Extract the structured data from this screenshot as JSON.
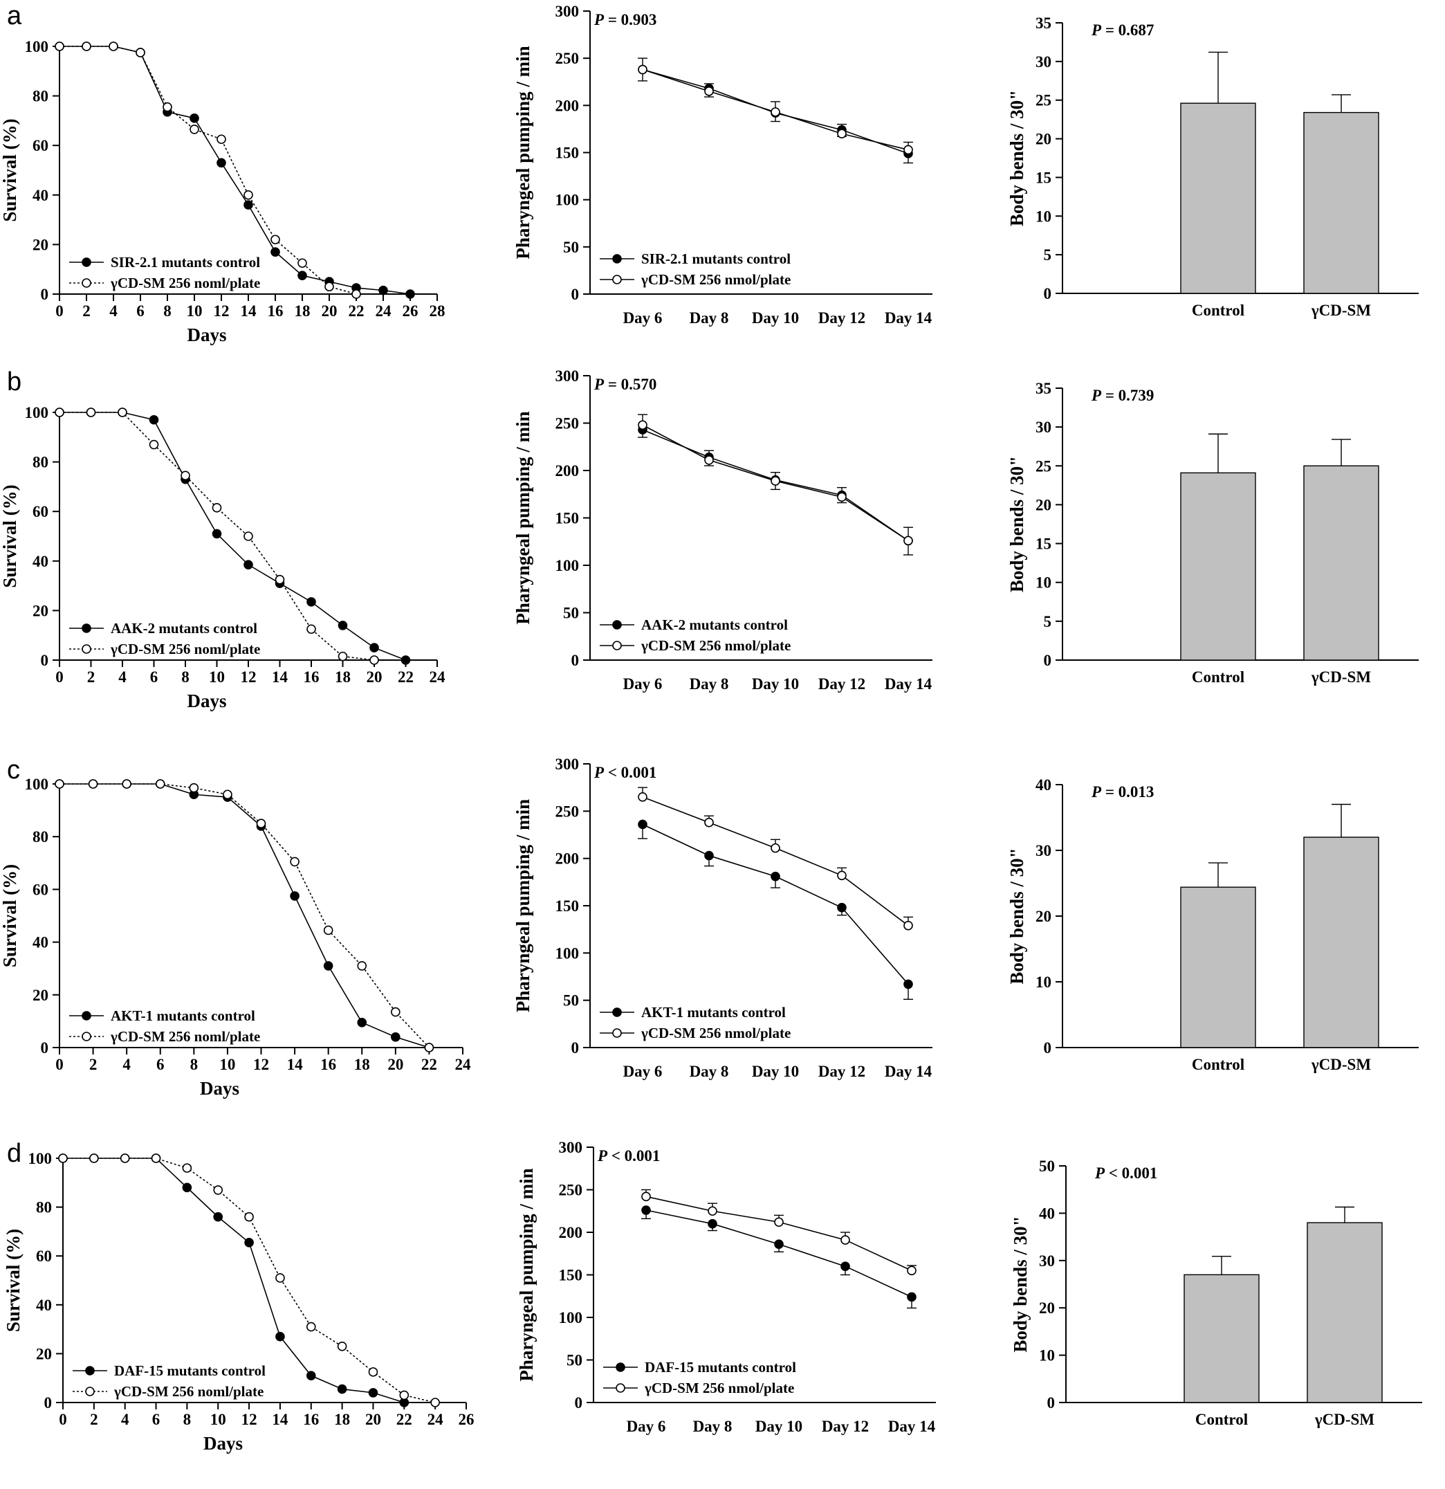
{
  "colors": {
    "axis": "#000000",
    "bar_fill": "#c0c0c0",
    "control_marker": "#000000",
    "treatment_marker": "#ffffff"
  },
  "rows": [
    {
      "letter": "a",
      "survival": {
        "type": "line",
        "ylabel": "Survival (%)",
        "xlabel": "Days",
        "ylim": [
          0,
          100
        ],
        "xlim": [
          0,
          28
        ],
        "yticks": [
          0,
          20,
          40,
          60,
          80,
          100
        ],
        "xticks": [
          0,
          2,
          4,
          6,
          8,
          10,
          12,
          14,
          16,
          18,
          20,
          22,
          24,
          26,
          28
        ],
        "legend_position": "bottom-left",
        "series": [
          {
            "name": "SIR-2.1 mutants control",
            "style": "control",
            "x": [
              0,
              2,
              4,
              6,
              8,
              10,
              12,
              14,
              16,
              18,
              20,
              22,
              24,
              26
            ],
            "y": [
              100,
              100,
              100,
              97.5,
              73.5,
              71,
              53,
              36,
              17,
              7.5,
              5,
              2.5,
              1.5,
              0
            ]
          },
          {
            "name": "γCD-SM 256 noml/plate",
            "style": "treatment",
            "x": [
              0,
              2,
              4,
              6,
              8,
              10,
              12,
              14,
              16,
              18,
              20,
              22
            ],
            "y": [
              100,
              100,
              100,
              97.5,
              75.5,
              66.5,
              62.5,
              40,
              22,
              12.5,
              3,
              0
            ]
          }
        ]
      },
      "pumping": {
        "type": "line",
        "ylabel": "Pharyngeal pumping / min",
        "categories": [
          "Day 6",
          "Day 8",
          "Day 10",
          "Day 12",
          "Day 14"
        ],
        "ylim": [
          0,
          300
        ],
        "yticks": [
          0,
          50,
          100,
          150,
          200,
          250,
          300
        ],
        "annotation": "= 0.903",
        "legend_position": "bottom-left",
        "series": [
          {
            "name": "SIR-2.1 mutants control",
            "style": "control",
            "values": [
              238,
              218,
              192,
              174,
              149
            ],
            "errors": [
              12,
              9,
              9,
              7,
              10
            ]
          },
          {
            "name": "γCD-SM 256 nmol/plate",
            "style": "treatment",
            "values": [
              238,
              215,
              193,
              170,
              153
            ],
            "errors": [
              12,
              8,
              11,
              10,
              8
            ]
          }
        ]
      },
      "bends": {
        "type": "bar",
        "ylabel": "Body bends / 30\"",
        "categories": [
          "Control",
          "γCD-SM"
        ],
        "values": [
          24.6,
          23.4
        ],
        "errors": [
          6.6,
          2.3
        ],
        "ylim": [
          0,
          35
        ],
        "yticks": [
          0,
          5,
          10,
          15,
          20,
          25,
          30,
          35
        ],
        "annotation": "= 0.687"
      }
    },
    {
      "letter": "b",
      "survival": {
        "type": "line",
        "ylabel": "Survival (%)",
        "xlabel": "Days",
        "ylim": [
          0,
          100
        ],
        "xlim": [
          0,
          24
        ],
        "yticks": [
          0,
          20,
          40,
          60,
          80,
          100
        ],
        "xticks": [
          0,
          2,
          4,
          6,
          8,
          10,
          12,
          14,
          16,
          18,
          20,
          22,
          24
        ],
        "legend_position": "bottom-left",
        "series": [
          {
            "name": "AAK-2 mutants control",
            "style": "control",
            "x": [
              0,
              2,
              4,
              6,
              8,
              10,
              12,
              14,
              16,
              18,
              20,
              22
            ],
            "y": [
              100,
              100,
              100,
              97,
              73,
              51,
              38.5,
              31,
              23.5,
              14,
              5,
              0
            ]
          },
          {
            "name": "γCD-SM 256 noml/plate",
            "style": "treatment",
            "x": [
              0,
              2,
              4,
              6,
              8,
              10,
              12,
              14,
              16,
              18,
              20
            ],
            "y": [
              100,
              100,
              100,
              87,
              74.5,
              61.5,
              50,
              32.5,
              12.5,
              1.5,
              0
            ]
          }
        ]
      },
      "pumping": {
        "type": "line",
        "ylabel": "Pharyngeal pumping / min",
        "categories": [
          "Day 6",
          "Day 8",
          "Day 10",
          "Day 12",
          "Day 14"
        ],
        "ylim": [
          0,
          300
        ],
        "yticks": [
          0,
          50,
          100,
          150,
          200,
          250,
          300
        ],
        "annotation": "= 0.570",
        "legend_position": "bottom-left",
        "series": [
          {
            "name": "AAK-2 mutants control",
            "style": "control",
            "values": [
              243,
              214,
              190,
              174,
              126
            ],
            "errors": [
              8,
              9,
              10,
              8,
              15
            ]
          },
          {
            "name": "γCD-SM 256 nmol/plate",
            "style": "treatment",
            "values": [
              248,
              211,
              189,
              172,
              126
            ],
            "errors": [
              11,
              10,
              9,
              10,
              14
            ]
          }
        ]
      },
      "bends": {
        "type": "bar",
        "ylabel": "Body bends / 30\"",
        "categories": [
          "Control",
          "γCD-SM"
        ],
        "values": [
          24.1,
          25
        ],
        "errors": [
          5,
          3.4
        ],
        "ylim": [
          0,
          35
        ],
        "yticks": [
          0,
          5,
          10,
          15,
          20,
          25,
          30,
          35
        ],
        "annotation": "= 0.739"
      }
    },
    {
      "letter": "c",
      "survival": {
        "type": "line",
        "ylabel": "Survival (%)",
        "xlabel": "Days",
        "ylim": [
          0,
          100
        ],
        "xlim": [
          0,
          24
        ],
        "yticks": [
          0,
          20,
          40,
          60,
          80,
          100
        ],
        "xticks": [
          0,
          2,
          4,
          6,
          8,
          10,
          12,
          14,
          16,
          18,
          20,
          22,
          24
        ],
        "legend_position": "bottom-left",
        "series": [
          {
            "name": "AKT-1 mutants control",
            "style": "control",
            "x": [
              0,
              2,
              4,
              6,
              8,
              10,
              12,
              14,
              16,
              18,
              20,
              22
            ],
            "y": [
              100,
              100,
              100,
              100,
              96,
              95,
              84,
              57.5,
              31,
              9.5,
              4,
              0
            ]
          },
          {
            "name": "γCD-SM 256 noml/plate",
            "style": "treatment",
            "x": [
              0,
              2,
              4,
              6,
              8,
              10,
              12,
              14,
              16,
              18,
              20,
              22
            ],
            "y": [
              100,
              100,
              100,
              100,
              98.5,
              96,
              85,
              70.5,
              44.5,
              31,
              13.5,
              0
            ]
          }
        ]
      },
      "pumping": {
        "type": "line",
        "ylabel": "Pharyngeal pumping / min",
        "categories": [
          "Day 6",
          "Day 8",
          "Day 10",
          "Day 12",
          "Day 14"
        ],
        "ylim": [
          0,
          300
        ],
        "yticks": [
          0,
          50,
          100,
          150,
          200,
          250,
          300
        ],
        "annotation": "< 0.001",
        "legend_position": "bottom-left",
        "series": [
          {
            "name": "AKT-1 mutants control",
            "style": "control",
            "values": [
              236,
              203,
              181,
              148,
              67
            ],
            "errors": [
              15,
              11,
              12,
              8,
              16
            ]
          },
          {
            "name": "γCD-SM 256 nmol/plate",
            "style": "treatment",
            "values": [
              265,
              238,
              211,
              182,
              129
            ],
            "errors": [
              10,
              7,
              9,
              8,
              9
            ]
          }
        ]
      },
      "bends": {
        "type": "bar",
        "ylabel": "Body bends / 30\"",
        "categories": [
          "Control",
          "γCD-SM"
        ],
        "values": [
          24.4,
          32
        ],
        "errors": [
          3.7,
          5
        ],
        "ylim": [
          0,
          40
        ],
        "yticks": [
          0,
          10,
          20,
          30,
          40
        ],
        "annotation": "= 0.013"
      }
    },
    {
      "letter": "d",
      "survival": {
        "type": "line",
        "ylabel": "Survival (%)",
        "xlabel": "Days",
        "ylim": [
          0,
          100
        ],
        "xlim": [
          0,
          26
        ],
        "yticks": [
          0,
          20,
          40,
          60,
          80,
          100
        ],
        "xticks": [
          0,
          2,
          4,
          6,
          8,
          10,
          12,
          14,
          16,
          18,
          20,
          22,
          24,
          26
        ],
        "legend_position": "bottom-left",
        "series": [
          {
            "name": "DAF-15 mutants control",
            "style": "control",
            "x": [
              0,
              2,
              4,
              6,
              8,
              10,
              12,
              14,
              16,
              18,
              20,
              22
            ],
            "y": [
              100,
              100,
              100,
              100,
              88,
              76,
              65.5,
              27,
              11,
              5.5,
              4,
              0
            ]
          },
          {
            "name": "γCD-SM 256 noml/plate",
            "style": "treatment",
            "x": [
              0,
              2,
              4,
              6,
              8,
              10,
              12,
              14,
              16,
              18,
              20,
              22,
              24
            ],
            "y": [
              100,
              100,
              100,
              100,
              96,
              87,
              76,
              51,
              31,
              23,
              12.5,
              3,
              0
            ]
          }
        ]
      },
      "pumping": {
        "type": "line",
        "ylabel": "Pharyngeal pumping / min",
        "categories": [
          "Day 6",
          "Day 8",
          "Day 10",
          "Day 12",
          "Day 14"
        ],
        "ylim": [
          0,
          300
        ],
        "yticks": [
          0,
          50,
          100,
          150,
          200,
          250,
          300
        ],
        "annotation": "< 0.001",
        "legend_position": "bottom-left",
        "series": [
          {
            "name": "DAF-15 mutants control",
            "style": "control",
            "values": [
              226,
              210,
              186,
              160,
              124
            ],
            "errors": [
              10,
              8,
              9,
              10,
              13
            ]
          },
          {
            "name": "γCD-SM 256 nmol/plate",
            "style": "treatment",
            "values": [
              242,
              225,
              212,
              191,
              155
            ],
            "errors": [
              8,
              9,
              8,
              9,
              6
            ]
          }
        ]
      },
      "bends": {
        "type": "bar",
        "ylabel": "Body bends / 30\"",
        "categories": [
          "Control",
          "γCD-SM"
        ],
        "values": [
          27,
          38
        ],
        "errors": [
          3.9,
          3.3
        ],
        "ylim": [
          0,
          50
        ],
        "yticks": [
          0,
          10,
          20,
          30,
          40,
          50
        ],
        "annotation": "< 0.001"
      }
    }
  ]
}
